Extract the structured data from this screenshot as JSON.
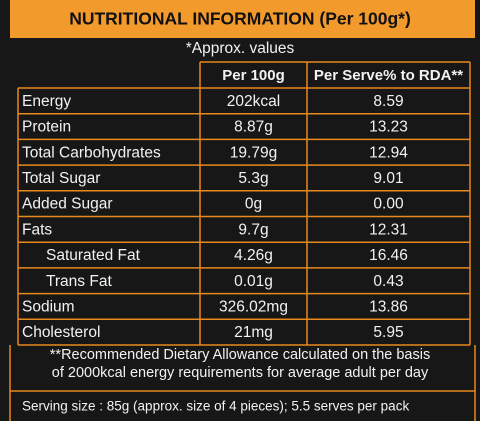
{
  "header": {
    "title": "NUTRITIONAL INFORMATION (Per 100g*)",
    "note": "*Approx. values"
  },
  "table": {
    "columns": [
      "Per 100g",
      "Per Serve% to RDA**"
    ],
    "rows": [
      {
        "nutrient": "Energy",
        "per_100g": "202kcal",
        "per_serve_rda": "8.59"
      },
      {
        "nutrient": "Protein",
        "per_100g": "8.87g",
        "per_serve_rda": "13.23"
      },
      {
        "nutrient": "Total Carbohydrates",
        "per_100g": "19.79g",
        "per_serve_rda": "12.94"
      },
      {
        "nutrient": "Total Sugar",
        "per_100g": "5.3g",
        "per_serve_rda": "9.01"
      },
      {
        "nutrient": "Added Sugar",
        "per_100g": "0g",
        "per_serve_rda": "0.00"
      },
      {
        "nutrient": "Fats",
        "per_100g": "9.7g",
        "per_serve_rda": "12.31",
        "sub_rows": [
          {
            "nutrient": "Saturated Fat",
            "per_100g": "4.26g",
            "per_serve_rda": "16.46"
          },
          {
            "nutrient": "Trans Fat",
            "per_100g": "0.01g",
            "per_serve_rda": "0.43"
          }
        ]
      },
      {
        "nutrient": "Sodium",
        "per_100g": "326.02mg",
        "per_serve_rda": "13.86"
      },
      {
        "nutrient": "Cholesterol",
        "per_100g": "21mg",
        "per_serve_rda": "5.95"
      }
    ]
  },
  "footnote": [
    "**Recommended Dietary Allowance calculated on the basis",
    "of 2000kcal energy requirements for average adult per day"
  ],
  "serving": "Serving size : 85g (approx. size of 4 pieces); 5.5 serves per pack"
}
